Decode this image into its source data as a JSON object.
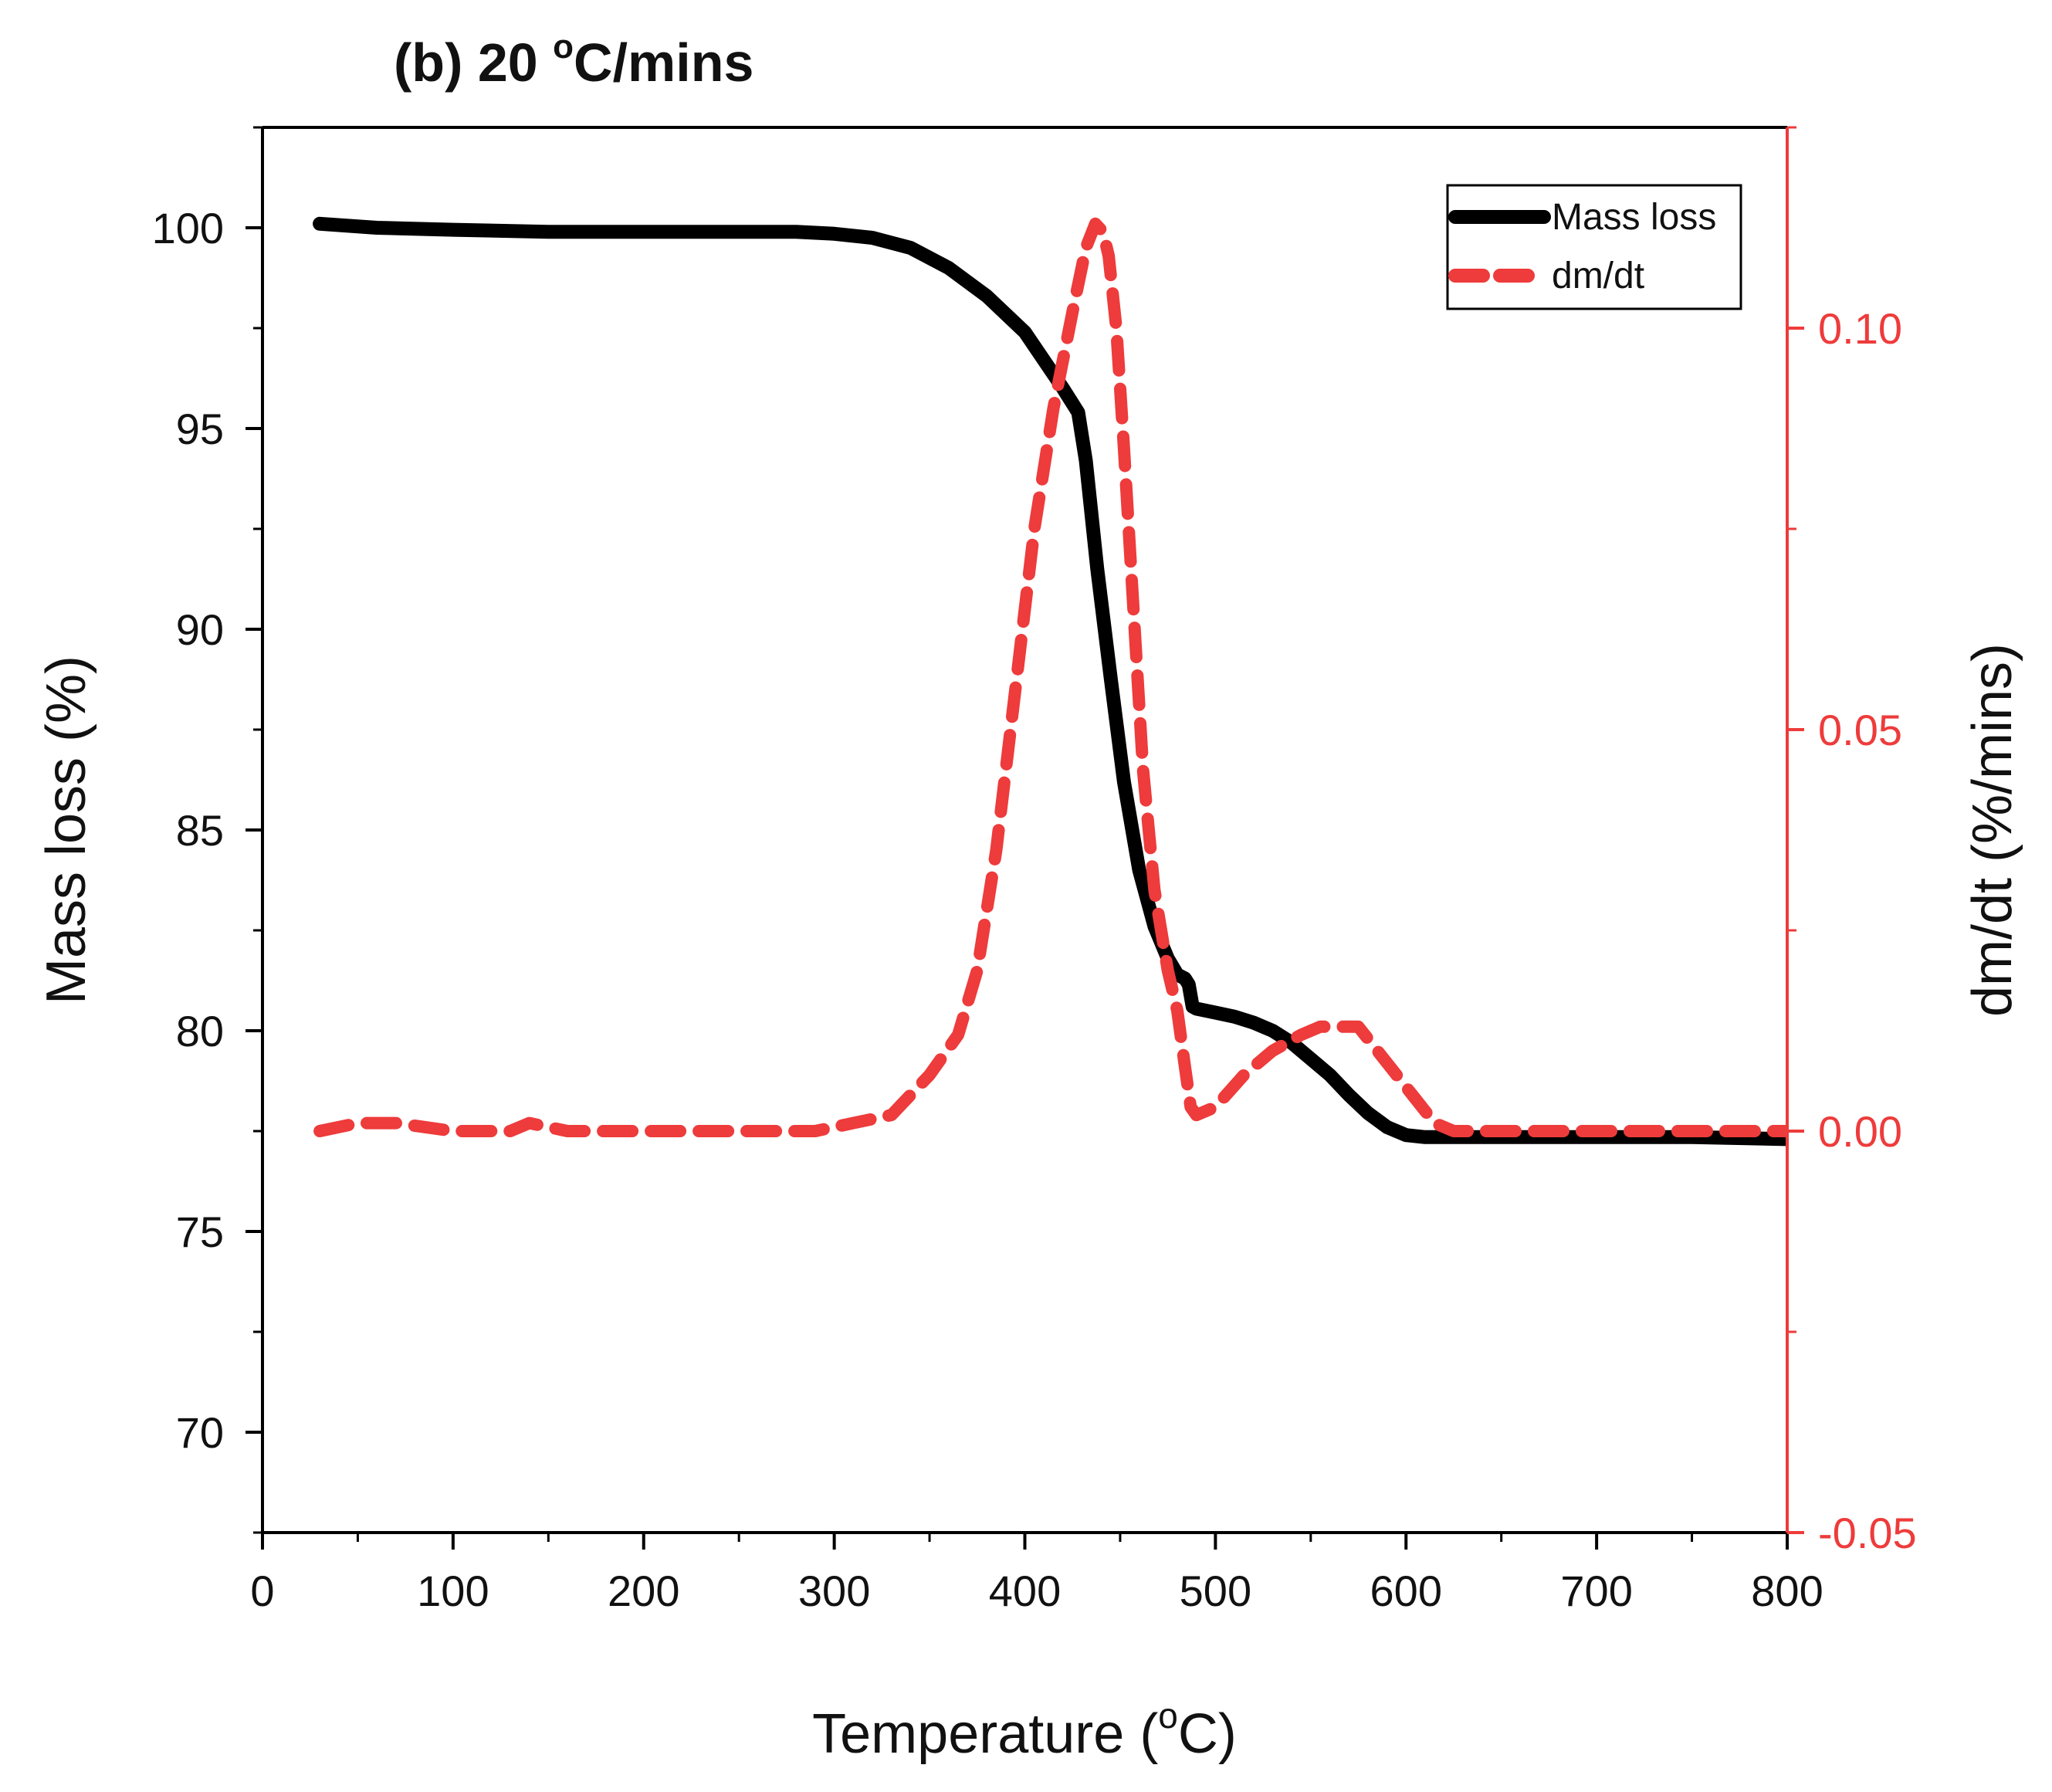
{
  "chart_data": {
    "type": "line",
    "title_main": "(b) 20 ",
    "title_sup": "o",
    "title_rest": "C/mins",
    "xlabel_main": "Temperature (",
    "xlabel_sup": "o",
    "xlabel_rest": "C)",
    "ylabel_left": "Mass loss (%)",
    "ylabel_right": "dm/dt (%/mins)",
    "xlim": [
      0,
      800
    ],
    "ylim_left": [
      67.5,
      102.5
    ],
    "ylim_right": [
      -0.05,
      0.125
    ],
    "x_ticks": [
      "0",
      "100",
      "200",
      "300",
      "400",
      "500",
      "600",
      "700",
      "800"
    ],
    "y_left_ticks": [
      "70",
      "75",
      "80",
      "85",
      "90",
      "95",
      "100"
    ],
    "y_right_ticks": [
      "-0.05",
      "0.00",
      "0.05",
      "0.10"
    ],
    "legend": {
      "position": "top-right",
      "entries": [
        "Mass loss",
        "dm/dt"
      ]
    },
    "colors": {
      "mass_loss": "#000000",
      "dmdt": "#ee3b3b",
      "right_axis": "#ee3b3b",
      "frame": "#000000"
    },
    "series": [
      {
        "name": "Mass loss",
        "axis": "left",
        "style": "solid",
        "x": [
          30,
          60,
          100,
          150,
          200,
          250,
          280,
          300,
          320,
          340,
          360,
          380,
          400,
          410,
          420,
          428,
          432,
          438,
          445,
          452,
          460,
          468,
          475,
          480,
          484,
          486,
          488,
          490,
          500,
          510,
          520,
          530,
          540,
          550,
          560,
          570,
          580,
          590,
          600,
          610,
          620,
          650,
          700,
          750,
          800
        ],
        "y": [
          100.1,
          100.0,
          99.95,
          99.9,
          99.9,
          99.9,
          99.9,
          99.85,
          99.75,
          99.5,
          99.0,
          98.3,
          97.4,
          96.7,
          96.0,
          95.4,
          94.2,
          91.5,
          88.8,
          86.2,
          84.0,
          82.6,
          81.8,
          81.4,
          81.3,
          81.15,
          80.6,
          80.55,
          80.45,
          80.35,
          80.2,
          80.0,
          79.7,
          79.3,
          78.9,
          78.4,
          77.95,
          77.6,
          77.4,
          77.35,
          77.35,
          77.35,
          77.35,
          77.35,
          77.3
        ]
      },
      {
        "name": "dm/dt",
        "axis": "right",
        "style": "dashed",
        "x": [
          30,
          50,
          70,
          100,
          130,
          140,
          160,
          200,
          250,
          290,
          310,
          330,
          350,
          365,
          375,
          385,
          395,
          405,
          415,
          425,
          432,
          437,
          441,
          444,
          448,
          452,
          457,
          462,
          468,
          475,
          480,
          484,
          487,
          490,
          500,
          515,
          530,
          545,
          555,
          565,
          575,
          585,
          595,
          605,
          615,
          625,
          650,
          700,
          750,
          800
        ],
        "y": [
          0.0,
          0.001,
          0.001,
          0.0,
          0.0,
          0.001,
          0.0,
          0.0,
          0.0,
          0.0,
          0.001,
          0.002,
          0.007,
          0.012,
          0.02,
          0.035,
          0.055,
          0.075,
          0.09,
          0.102,
          0.11,
          0.113,
          0.112,
          0.109,
          0.1,
          0.085,
          0.065,
          0.045,
          0.03,
          0.02,
          0.015,
          0.008,
          0.003,
          0.002,
          0.003,
          0.007,
          0.01,
          0.012,
          0.013,
          0.013,
          0.013,
          0.01,
          0.007,
          0.004,
          0.001,
          0.0,
          0.0,
          0.0,
          0.0,
          0.0
        ]
      }
    ]
  }
}
